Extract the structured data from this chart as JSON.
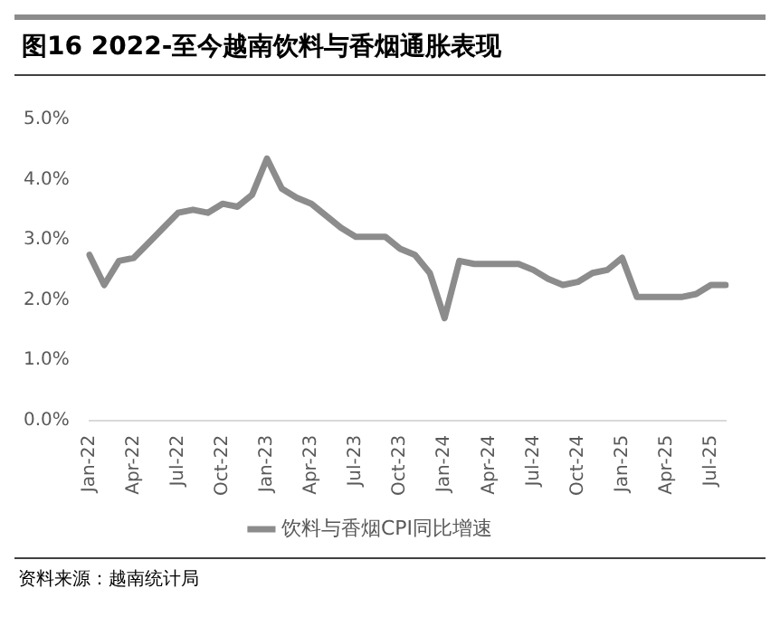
{
  "chart_data": {
    "type": "line",
    "title": "图16 2022-至今越南饮料与香烟通胀表现",
    "categories": [
      "Jan-22",
      null,
      null,
      "Apr-22",
      null,
      null,
      "Jul-22",
      null,
      null,
      "Oct-22",
      null,
      null,
      "Jan-23",
      null,
      null,
      "Apr-23",
      null,
      null,
      "Jul-23",
      null,
      null,
      "Oct-23",
      null,
      null,
      "Jan-24",
      null,
      null,
      "Apr-24",
      null,
      null,
      "Jul-24",
      null,
      null,
      "Oct-24",
      null,
      null,
      "Jan-25",
      null,
      null,
      "Apr-25",
      null,
      null,
      "Jul-25",
      null
    ],
    "series": [
      {
        "name": "饮料与香烟CPI同比增速",
        "color": "#8c8c8c",
        "values": [
          2.75,
          2.25,
          2.65,
          2.7,
          2.95,
          3.2,
          3.45,
          3.5,
          3.45,
          3.6,
          3.55,
          3.75,
          4.35,
          3.85,
          3.7,
          3.6,
          3.4,
          3.2,
          3.05,
          3.05,
          3.05,
          2.85,
          2.75,
          2.45,
          1.7,
          2.65,
          2.6,
          2.6,
          2.6,
          2.6,
          2.5,
          2.35,
          2.25,
          2.3,
          2.45,
          2.5,
          2.7,
          2.05,
          2.05,
          2.05,
          2.05,
          2.1,
          2.25,
          2.25
        ]
      }
    ],
    "ylim": [
      0,
      5
    ],
    "yticks": [
      {
        "value": 0,
        "label": "0.0%"
      },
      {
        "value": 1,
        "label": "1.0%"
      },
      {
        "value": 2,
        "label": "2.0%"
      },
      {
        "value": 3,
        "label": "3.0%"
      },
      {
        "value": 4,
        "label": "4.0%"
      },
      {
        "value": 5,
        "label": "5.0%"
      }
    ],
    "grid": false,
    "legend": "bottom",
    "marker": "none",
    "line_style": "solid",
    "annotations": [
      "资料来源：越南统计局"
    ]
  }
}
